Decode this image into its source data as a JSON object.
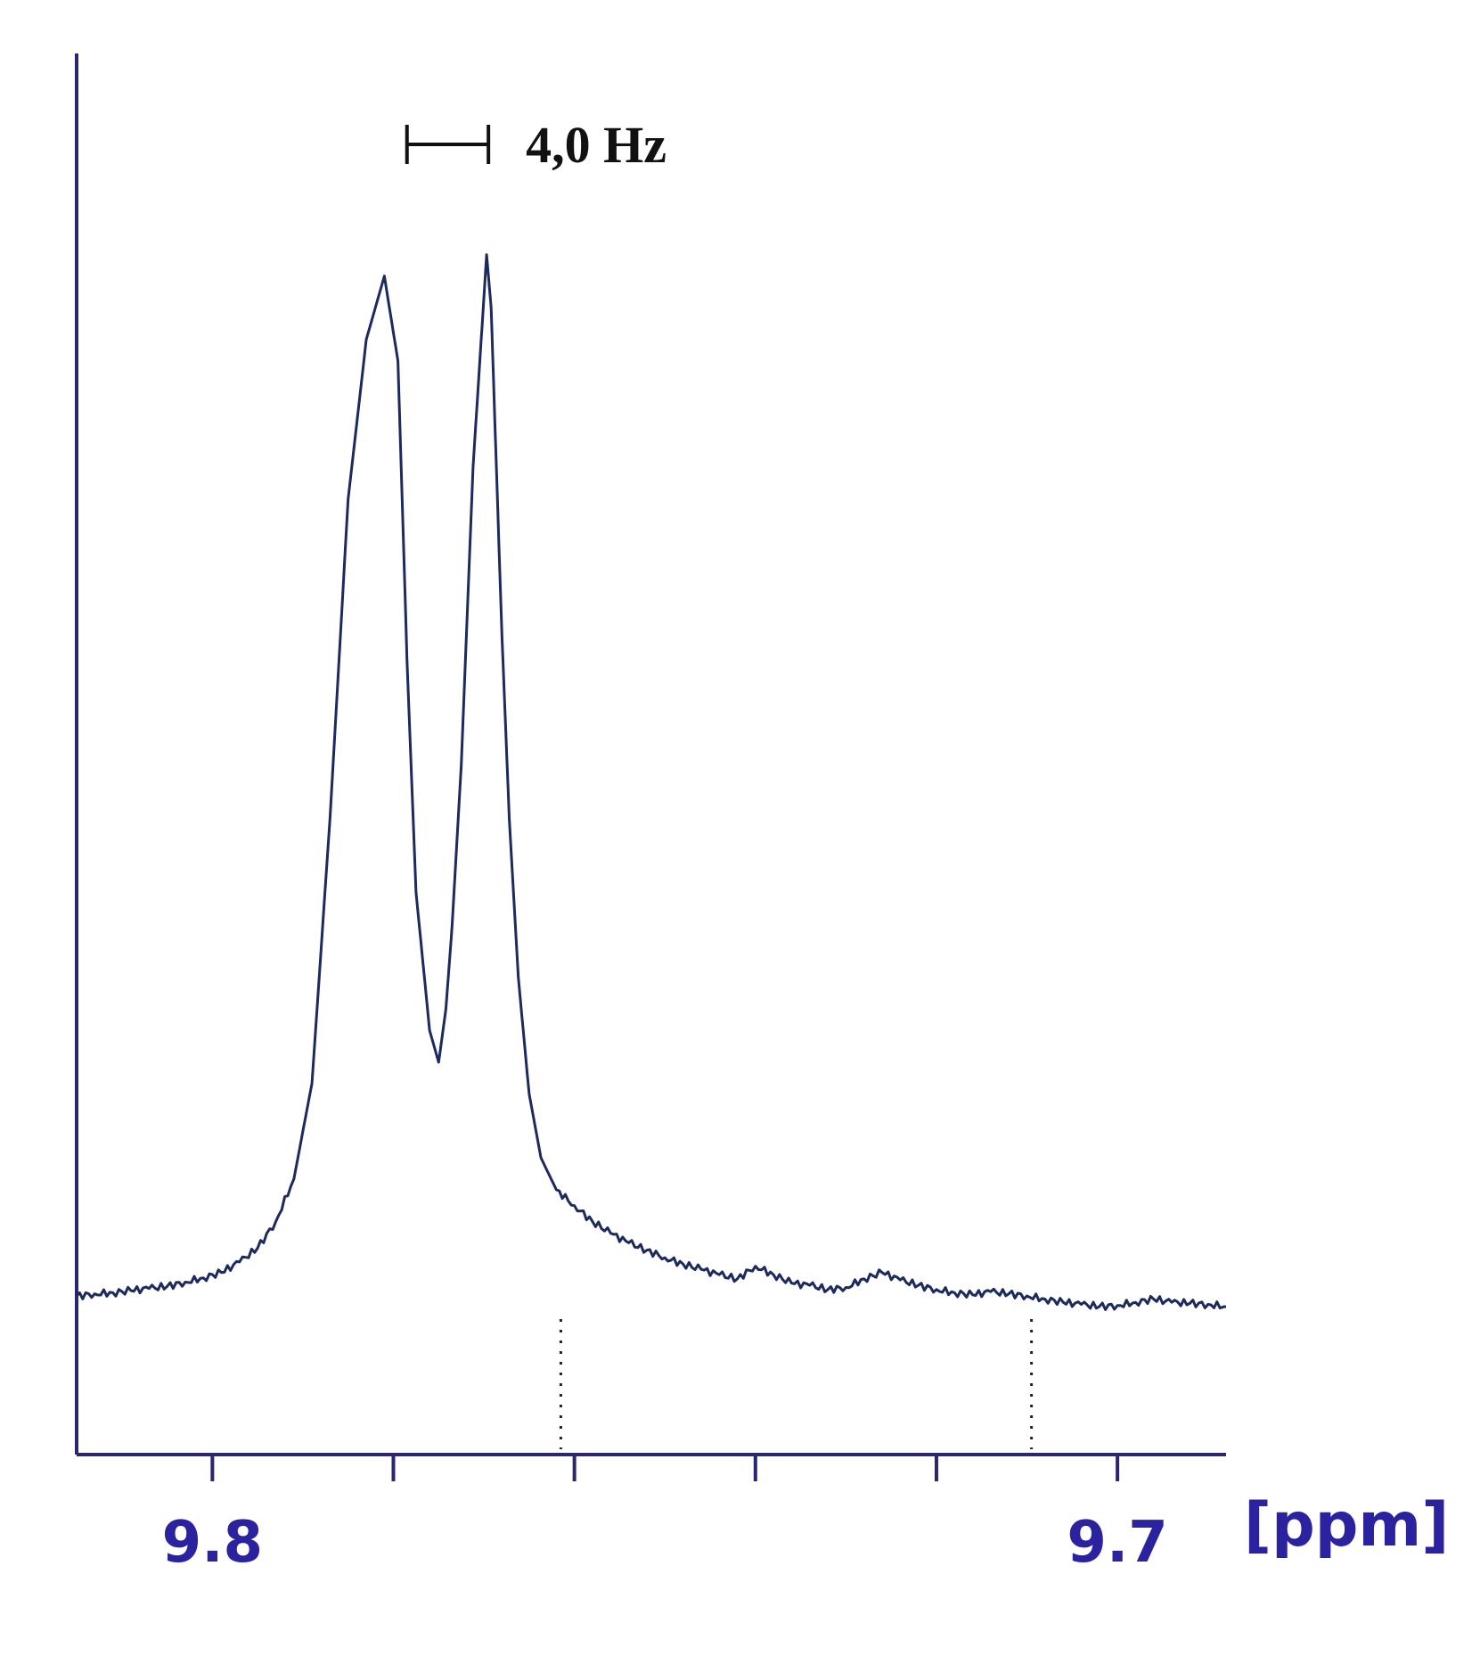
{
  "chart_data": {
    "type": "line",
    "title": "",
    "xlabel": "[ppm]",
    "ylabel": "",
    "x_direction": "reversed",
    "xlim": [
      9.815,
      9.688
    ],
    "ylim": [
      -0.09,
      1.0
    ],
    "x_ticks": [
      {
        "value": 9.8,
        "label": "9.8"
      },
      {
        "value": 9.78,
        "label": ""
      },
      {
        "value": 9.76,
        "label": ""
      },
      {
        "value": 9.74,
        "label": ""
      },
      {
        "value": 9.72,
        "label": ""
      },
      {
        "value": 9.7,
        "label": "9.7"
      }
    ],
    "dotted_markers_ppm": [
      9.7615,
      9.7095
    ],
    "coupling_annotation": {
      "label": "4,0 Hz",
      "from_ppm": 9.7785,
      "to_ppm": 9.7695
    },
    "series": [
      {
        "x": [
          9.815,
          9.813,
          9.811,
          9.809,
          9.807,
          9.805,
          9.803,
          9.801,
          9.799,
          9.797,
          9.795,
          9.793,
          9.791,
          9.789,
          9.787,
          9.785,
          9.783,
          9.781,
          9.7795,
          9.7785,
          9.7775,
          9.776,
          9.775,
          9.7742,
          9.7735,
          9.7725,
          9.7712,
          9.7703,
          9.7697,
          9.7692,
          9.7687,
          9.768,
          9.7672,
          9.7662,
          9.765,
          9.7637,
          9.762,
          9.76,
          9.758,
          9.756,
          9.754,
          9.752,
          9.75,
          9.748,
          9.746,
          9.744,
          9.742,
          9.74,
          9.738,
          9.736,
          9.734,
          9.732,
          9.73,
          9.728,
          9.726,
          9.724,
          9.722,
          9.72,
          9.718,
          9.716,
          9.714,
          9.712,
          9.71,
          9.708,
          9.706,
          9.704,
          9.702,
          9.7,
          9.698,
          9.696,
          9.694,
          9.692,
          9.69,
          9.688
        ],
        "y": [
          0.0,
          0.002,
          0.003,
          0.005,
          0.007,
          0.009,
          0.013,
          0.017,
          0.022,
          0.032,
          0.045,
          0.07,
          0.11,
          0.2,
          0.45,
          0.75,
          0.9,
          0.96,
          0.88,
          0.6,
          0.38,
          0.25,
          0.22,
          0.27,
          0.35,
          0.5,
          0.78,
          0.9,
          0.98,
          0.93,
          0.8,
          0.62,
          0.45,
          0.3,
          0.19,
          0.13,
          0.1,
          0.085,
          0.07,
          0.059,
          0.05,
          0.043,
          0.036,
          0.03,
          0.025,
          0.02,
          0.016,
          0.028,
          0.02,
          0.012,
          0.01,
          0.006,
          0.008,
          0.016,
          0.022,
          0.015,
          0.01,
          0.006,
          0.003,
          0.001,
          0.004,
          0.002,
          0.0,
          -0.003,
          -0.006,
          -0.008,
          -0.01,
          -0.009,
          -0.006,
          -0.003,
          -0.006,
          -0.007,
          -0.008,
          -0.01
        ]
      }
    ]
  },
  "colors": {
    "trace": "#1c2a5e",
    "axis": "#2a2670",
    "tick_label": "#2b22a0",
    "annotation": "#111111",
    "marker": "#222222"
  }
}
